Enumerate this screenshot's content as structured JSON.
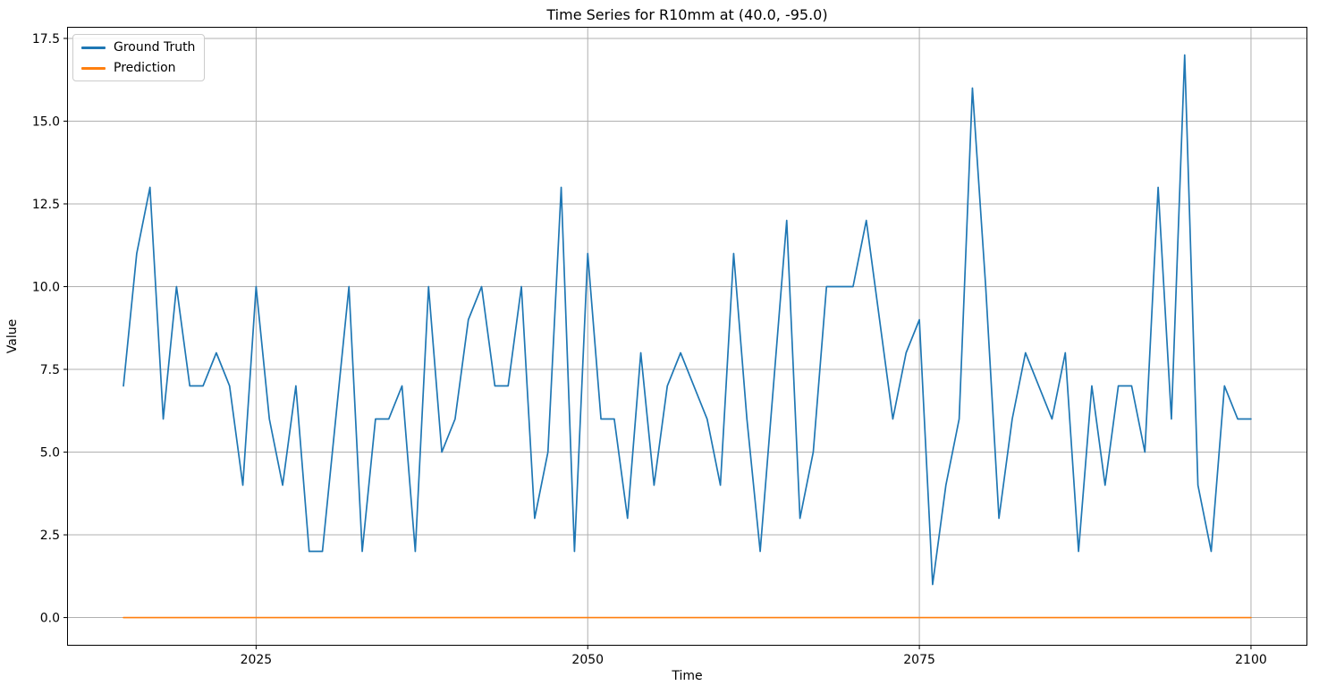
{
  "chart_data": {
    "type": "line",
    "title": "Time Series for R10mm at (40.0, -95.0)",
    "xlabel": "Time",
    "ylabel": "Value",
    "grid": true,
    "grid_color": "#b0b0b0",
    "legend_position": "upper-left",
    "xlim": [
      2010.75,
      2104.25
    ],
    "ylim": [
      -0.85,
      17.85
    ],
    "xticks": [
      2025,
      2050,
      2075,
      2100
    ],
    "xtick_labels": [
      "2025",
      "2050",
      "2075",
      "2100"
    ],
    "yticks": [
      0,
      2.5,
      5,
      7.5,
      10,
      12.5,
      15,
      17.5
    ],
    "ytick_labels": [
      "0.0",
      "2.5",
      "5.0",
      "7.5",
      "10.0",
      "12.5",
      "15.0",
      "17.5"
    ],
    "x": [
      2015,
      2016,
      2017,
      2018,
      2019,
      2020,
      2021,
      2022,
      2023,
      2024,
      2025,
      2026,
      2027,
      2028,
      2029,
      2030,
      2031,
      2032,
      2033,
      2034,
      2035,
      2036,
      2037,
      2038,
      2039,
      2040,
      2041,
      2042,
      2043,
      2044,
      2045,
      2046,
      2047,
      2048,
      2049,
      2050,
      2051,
      2052,
      2053,
      2054,
      2055,
      2056,
      2057,
      2058,
      2059,
      2060,
      2061,
      2062,
      2063,
      2064,
      2065,
      2066,
      2067,
      2068,
      2069,
      2070,
      2071,
      2072,
      2073,
      2074,
      2075,
      2076,
      2077,
      2078,
      2079,
      2080,
      2081,
      2082,
      2083,
      2084,
      2085,
      2086,
      2087,
      2088,
      2089,
      2090,
      2091,
      2092,
      2093,
      2094,
      2095,
      2096,
      2097,
      2098,
      2099,
      2100
    ],
    "series": [
      {
        "name": "Ground Truth",
        "color": "#1f77b4",
        "values": [
          7,
          11,
          13,
          6,
          10,
          7,
          7,
          8,
          7,
          4,
          10,
          6,
          4,
          7,
          2,
          2,
          6,
          10,
          2,
          6,
          6,
          7,
          2,
          10,
          5,
          6,
          9,
          10,
          7,
          7,
          10,
          3,
          5,
          13,
          2,
          11,
          6,
          6,
          3,
          8,
          4,
          7,
          8,
          7,
          6,
          4,
          11,
          6,
          2,
          7,
          12,
          3,
          5,
          10,
          10,
          10,
          12,
          9,
          6,
          8,
          9,
          1,
          4,
          6,
          16,
          10,
          3,
          6,
          8,
          7,
          6,
          8,
          2,
          7,
          4,
          7,
          7,
          5,
          13,
          6,
          17,
          4,
          2,
          7,
          6,
          6
        ]
      },
      {
        "name": "Prediction",
        "color": "#ff7f0e",
        "values": [
          0,
          0,
          0,
          0,
          0,
          0,
          0,
          0,
          0,
          0,
          0,
          0,
          0,
          0,
          0,
          0,
          0,
          0,
          0,
          0,
          0,
          0,
          0,
          0,
          0,
          0,
          0,
          0,
          0,
          0,
          0,
          0,
          0,
          0,
          0,
          0,
          0,
          0,
          0,
          0,
          0,
          0,
          0,
          0,
          0,
          0,
          0,
          0,
          0,
          0,
          0,
          0,
          0,
          0,
          0,
          0,
          0,
          0,
          0,
          0,
          0,
          0,
          0,
          0,
          0,
          0,
          0,
          0,
          0,
          0,
          0,
          0,
          0,
          0,
          0,
          0,
          0,
          0,
          0,
          0,
          0,
          0,
          0,
          0,
          0,
          0
        ]
      }
    ]
  }
}
